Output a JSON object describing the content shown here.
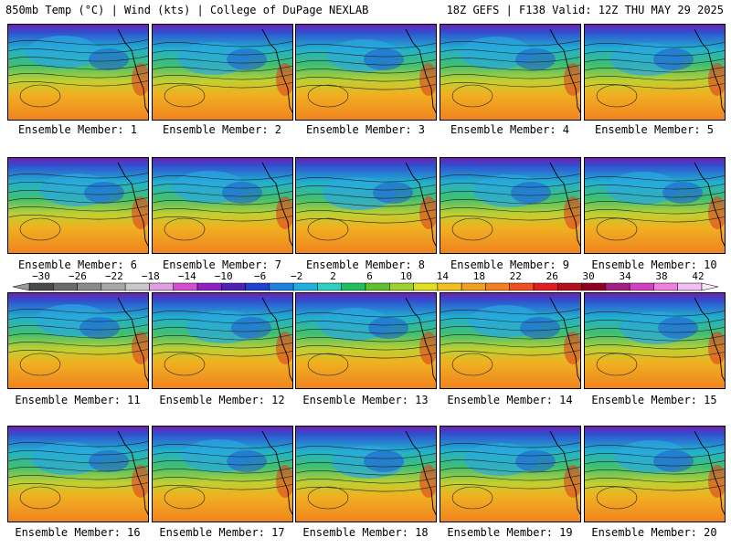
{
  "header": {
    "left": "850mb Temp (°C) | Wind (kts) | College of DuPage NEXLAB",
    "right": "18Z GEFS | F138 Valid: 12Z THU MAY 29 2025"
  },
  "caption_prefix": "Ensemble Member: ",
  "members": [
    "1",
    "2",
    "3",
    "4",
    "5",
    "6",
    "7",
    "8",
    "9",
    "10",
    "11",
    "12",
    "13",
    "14",
    "15",
    "16",
    "17",
    "18",
    "19",
    "20"
  ],
  "colorbar": {
    "ticks": [
      "-30",
      "-26",
      "-22",
      "-18",
      "-14",
      "-10",
      "-6",
      "-2",
      "2",
      "6",
      "10",
      "14",
      "18",
      "22",
      "26",
      "30",
      "34",
      "38",
      "42"
    ],
    "colors": [
      "#4a4a4a",
      "#6a6a6a",
      "#8a8a8a",
      "#a8a8a8",
      "#c8c8c8",
      "#e0a0e0",
      "#d050d0",
      "#9020c0",
      "#5020b0",
      "#2040d0",
      "#2080e0",
      "#20b0e0",
      "#30d0c0",
      "#20c060",
      "#60c030",
      "#a0d030",
      "#e0e020",
      "#f0c020",
      "#f0a020",
      "#f08020",
      "#f05020",
      "#e02020",
      "#b01020",
      "#900020",
      "#a02080",
      "#d040c0",
      "#f080e0",
      "#f0c0f0"
    ]
  }
}
